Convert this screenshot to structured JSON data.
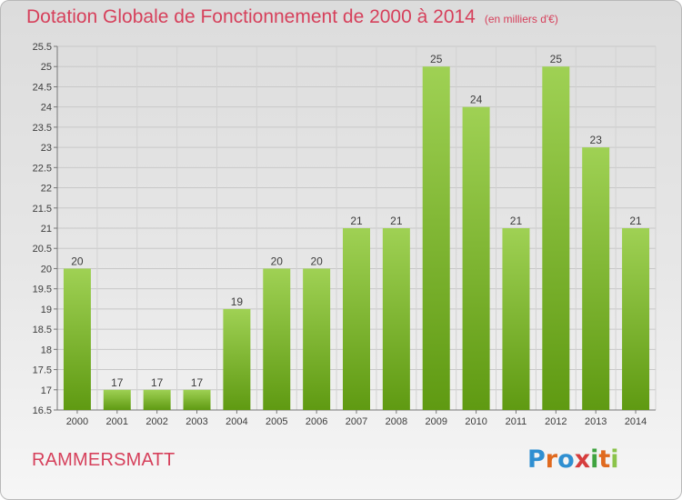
{
  "title": "Dotation Globale de Fonctionnement de 2000 à 2014",
  "unit": "(en milliers d'€)",
  "commune": "RAMMERSMATT",
  "logo": {
    "text": "Proxiti",
    "letter_colors": [
      "#2f8fd1",
      "#e06a1f",
      "#2f8fd1",
      "#d63d3d",
      "#3fa33f",
      "#e06a1f",
      "#8bc34a"
    ]
  },
  "colors": {
    "bar_light": "#9fd154",
    "bar_dark": "#5f9a12",
    "title": "#d6405b"
  },
  "chart_data": {
    "type": "bar",
    "categories": [
      "2000",
      "2001",
      "2002",
      "2003",
      "2004",
      "2005",
      "2006",
      "2007",
      "2008",
      "2009",
      "2010",
      "2011",
      "2012",
      "2013",
      "2014"
    ],
    "values": [
      20,
      17,
      17,
      17,
      19,
      20,
      20,
      21,
      21,
      25,
      24,
      21,
      25,
      23,
      21
    ],
    "data_labels": [
      "20",
      "17",
      "17",
      "17",
      "19",
      "20",
      "20",
      "21",
      "21",
      "25",
      "24",
      "21",
      "25",
      "23",
      "21"
    ],
    "ylim": [
      16.5,
      25.5
    ],
    "yticks": [
      16.5,
      17,
      17.5,
      18,
      18.5,
      19,
      19.5,
      20,
      20.5,
      21,
      21.5,
      22,
      22.5,
      23,
      23.5,
      24,
      24.5,
      25,
      25.5
    ],
    "ytick_labels": [
      "16.5",
      "17",
      "17.5",
      "18",
      "18.5",
      "19",
      "19.5",
      "20",
      "20.5",
      "21",
      "21.5",
      "22",
      "22.5",
      "23",
      "23.5",
      "24",
      "24.5",
      "25",
      "25.5"
    ],
    "grid": true,
    "xlabel": "",
    "ylabel": ""
  }
}
